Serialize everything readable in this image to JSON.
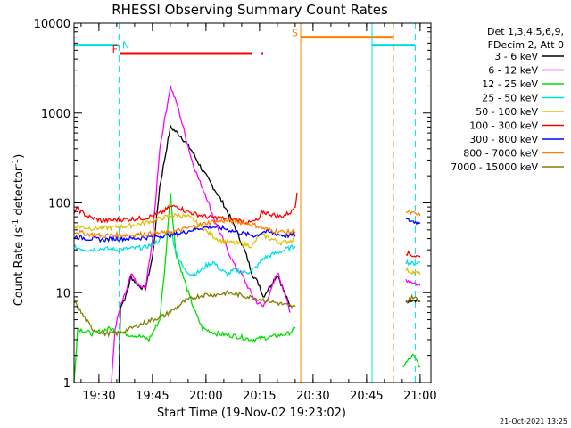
{
  "chart_data": {
    "type": "line",
    "title": "RHESSI Observing Summary Count Rates",
    "xlabel": "Start Time (19-Nov-02 19:23:02)",
    "ylabel": "Count Rate (s",
    "ylabel_sup1": "-1",
    "ylabel_mid": " detector",
    "ylabel_sup2": "-1",
    "ylabel_end": ")",
    "yscale": "log",
    "ylim": [
      1,
      10000
    ],
    "xlim_minutes": [
      0,
      100
    ],
    "x_unit": "minutes after 19:23:02",
    "y_ticks": [
      {
        "label": "1",
        "value": 1
      },
      {
        "label": "10",
        "value": 10
      },
      {
        "label": "100",
        "value": 100
      },
      {
        "label": "1000",
        "value": 1000
      },
      {
        "label": "10000",
        "value": 10000
      }
    ],
    "x_ticks": [
      {
        "label": "19:30",
        "minute": 6.97
      },
      {
        "label": "19:45",
        "minute": 21.97
      },
      {
        "label": "20:00",
        "minute": 36.97
      },
      {
        "label": "20:15",
        "minute": 51.97
      },
      {
        "label": "20:30",
        "minute": 66.97
      },
      {
        "label": "20:45",
        "minute": 81.97
      },
      {
        "label": "21:00",
        "minute": 96.97
      }
    ],
    "legend_header": [
      "Det 1,3,4,5,6,9,",
      "FDecim 2, Att 0"
    ],
    "legend_placement": "right",
    "footer": "21-Oct-2021 13:25",
    "series": [
      {
        "name": "3 - 6 keV",
        "color": "#000000",
        "segments": [
          [
            [
              12.6,
              1
            ],
            [
              13.0,
              7
            ],
            [
              14.5,
              9
            ],
            [
              16,
              15
            ],
            [
              18,
              12
            ],
            [
              20,
              11
            ],
            [
              22,
              25
            ],
            [
              24,
              150
            ],
            [
              27,
              700
            ],
            [
              30,
              550
            ],
            [
              33,
              380
            ],
            [
              36,
              230
            ],
            [
              39,
              150
            ],
            [
              42,
              95
            ],
            [
              45,
              55
            ],
            [
              48,
              28
            ],
            [
              50,
              16
            ],
            [
              52,
              12
            ],
            [
              53,
              9
            ],
            [
              55,
              12
            ],
            [
              57,
              16
            ],
            [
              59,
              10
            ],
            [
              60.5,
              7
            ]
          ],
          [
            [
              93,
              8
            ],
            [
              95,
              8.5
            ],
            [
              97,
              8
            ]
          ]
        ]
      },
      {
        "name": "6 - 12 keV",
        "color": "#ff00ff",
        "segments": [
          [
            [
              10.5,
              1
            ],
            [
              11.5,
              4
            ],
            [
              13,
              7
            ],
            [
              14.5,
              10
            ],
            [
              16,
              16
            ],
            [
              18,
              12
            ],
            [
              20,
              11
            ],
            [
              22,
              40
            ],
            [
              24,
              400
            ],
            [
              27,
              2000
            ],
            [
              29,
              1200
            ],
            [
              31,
              600
            ],
            [
              33,
              300
            ],
            [
              35,
              180
            ],
            [
              37,
              120
            ],
            [
              39,
              70
            ],
            [
              41,
              45
            ],
            [
              43,
              30
            ],
            [
              45,
              20
            ],
            [
              47,
              16
            ],
            [
              49,
              11
            ],
            [
              51,
              8
            ],
            [
              53,
              7
            ],
            [
              55,
              10
            ],
            [
              57,
              17
            ],
            [
              59,
              10
            ],
            [
              60.5,
              6
            ]
          ],
          [
            [
              93,
              14
            ],
            [
              95,
              13
            ],
            [
              97,
              12
            ]
          ]
        ]
      },
      {
        "name": "12 - 25 keV",
        "color": "#00e000",
        "segments": [
          [
            [
              0,
              1
            ],
            [
              1,
              4
            ],
            [
              5,
              3.5
            ],
            [
              10,
              4
            ],
            [
              14,
              3.5
            ],
            [
              18,
              3.3
            ],
            [
              21,
              3
            ],
            [
              24,
              5
            ],
            [
              25.5,
              20
            ],
            [
              27,
              130
            ],
            [
              28.5,
              28
            ],
            [
              30,
              18
            ],
            [
              32,
              10
            ],
            [
              34,
              6
            ],
            [
              36,
              4
            ],
            [
              40,
              3.5
            ],
            [
              45,
              3.3
            ],
            [
              50,
              3
            ],
            [
              55,
              3.2
            ],
            [
              60,
              3.5
            ],
            [
              62,
              4
            ]
          ],
          [
            [
              92,
              1.5
            ],
            [
              95,
              2
            ],
            [
              97,
              1.5
            ]
          ]
        ]
      },
      {
        "name": "25 - 50 keV",
        "color": "#00e0e0",
        "segments": [
          [
            [
              0,
              32
            ],
            [
              4,
              30
            ],
            [
              8,
              31
            ],
            [
              12,
              30
            ],
            [
              16,
              31
            ],
            [
              20,
              32
            ],
            [
              24,
              38
            ],
            [
              27,
              50
            ],
            [
              29,
              25
            ],
            [
              31,
              18
            ],
            [
              33,
              16
            ],
            [
              35,
              17
            ],
            [
              37,
              20
            ],
            [
              39,
              22
            ],
            [
              41,
              18
            ],
            [
              43,
              16
            ],
            [
              45,
              18
            ],
            [
              47,
              17
            ],
            [
              49,
              17
            ],
            [
              51,
              19
            ],
            [
              53,
              24
            ],
            [
              56,
              27
            ],
            [
              59,
              30
            ],
            [
              62,
              33
            ]
          ],
          [
            [
              93,
              22
            ],
            [
              95,
              21
            ],
            [
              97,
              22
            ]
          ]
        ]
      },
      {
        "name": "50 - 100 keV",
        "color": "#e0c000",
        "segments": [
          [
            [
              0,
              55
            ],
            [
              5,
              52
            ],
            [
              10,
              53
            ],
            [
              15,
              55
            ],
            [
              20,
              60
            ],
            [
              23,
              65
            ],
            [
              26,
              70
            ],
            [
              29,
              73
            ],
            [
              32,
              70
            ],
            [
              35,
              58
            ],
            [
              38,
              45
            ],
            [
              41,
              38
            ],
            [
              44,
              36
            ],
            [
              47,
              35
            ],
            [
              50,
              33
            ],
            [
              52,
              45
            ],
            [
              55,
              40
            ],
            [
              58,
              36
            ],
            [
              61,
              38
            ],
            [
              62,
              45
            ]
          ],
          [
            [
              93,
              18
            ],
            [
              95,
              17
            ],
            [
              97,
              16
            ]
          ]
        ]
      },
      {
        "name": "100 - 300 keV",
        "color": "#ff0000",
        "segments": [
          [
            [
              0,
              80
            ],
            [
              1,
              85
            ],
            [
              4,
              70
            ],
            [
              8,
              63
            ],
            [
              12,
              65
            ],
            [
              16,
              66
            ],
            [
              20,
              68
            ],
            [
              24,
              76
            ],
            [
              27,
              90
            ],
            [
              29,
              92
            ],
            [
              31,
              82
            ],
            [
              34,
              75
            ],
            [
              37,
              70
            ],
            [
              40,
              68
            ],
            [
              43,
              66
            ],
            [
              46,
              64
            ],
            [
              49,
              60
            ],
            [
              52,
              65
            ],
            [
              52.5,
              80
            ],
            [
              55,
              75
            ],
            [
              58,
              70
            ],
            [
              61,
              80
            ],
            [
              62,
              95
            ],
            [
              62.5,
              130
            ]
          ],
          [
            [
              93,
              28
            ],
            [
              95,
              26
            ],
            [
              97,
              25
            ]
          ]
        ]
      },
      {
        "name": "300 - 800 keV",
        "color": "#0000ff",
        "segments": [
          [
            [
              0,
              42
            ],
            [
              4,
              40
            ],
            [
              8,
              39
            ],
            [
              12,
              40
            ],
            [
              16,
              40
            ],
            [
              20,
              41
            ],
            [
              24,
              43
            ],
            [
              27,
              44
            ],
            [
              30,
              46
            ],
            [
              33,
              50
            ],
            [
              36,
              53
            ],
            [
              39,
              54
            ],
            [
              42,
              52
            ],
            [
              45,
              48
            ],
            [
              48,
              45
            ],
            [
              51,
              43
            ],
            [
              53,
              48
            ],
            [
              56,
              46
            ],
            [
              59,
              43
            ],
            [
              62,
              44
            ]
          ],
          [
            [
              93,
              65
            ],
            [
              95,
              62
            ],
            [
              97,
              60
            ]
          ]
        ]
      },
      {
        "name": "800 - 7000 keV",
        "color": "#ff8000",
        "segments": [
          [
            [
              0,
              48
            ],
            [
              4,
              45
            ],
            [
              8,
              43
            ],
            [
              12,
              44
            ],
            [
              16,
              44
            ],
            [
              20,
              45
            ],
            [
              24,
              46
            ],
            [
              27,
              47
            ],
            [
              30,
              50
            ],
            [
              33,
              54
            ],
            [
              36,
              58
            ],
            [
              39,
              62
            ],
            [
              42,
              63
            ],
            [
              45,
              62
            ],
            [
              48,
              60
            ],
            [
              51,
              56
            ],
            [
              53,
              52
            ],
            [
              56,
              49
            ],
            [
              59,
              47
            ],
            [
              62,
              48
            ]
          ],
          [
            [
              93,
              80
            ],
            [
              95,
              76
            ],
            [
              97,
              72
            ]
          ]
        ]
      },
      {
        "name": "7000 - 15000 keV",
        "color": "#808000",
        "segments": [
          [
            [
              0,
              8
            ],
            [
              2,
              6
            ],
            [
              5,
              4
            ],
            [
              8,
              3.5
            ],
            [
              12,
              3.5
            ],
            [
              16,
              4
            ],
            [
              19,
              4.5
            ],
            [
              22,
              5
            ],
            [
              25,
              5.5
            ],
            [
              28,
              6.5
            ],
            [
              31,
              8
            ],
            [
              34,
              9
            ],
            [
              37,
              9.5
            ],
            [
              40,
              9.5
            ],
            [
              43,
              10
            ],
            [
              46,
              9.5
            ],
            [
              49,
              9
            ],
            [
              52,
              8.5
            ],
            [
              55,
              8
            ],
            [
              58,
              7.5
            ],
            [
              61,
              7
            ],
            [
              62,
              7
            ]
          ],
          [
            [
              93,
              8
            ],
            [
              95,
              9
            ],
            [
              97,
              8
            ]
          ]
        ]
      }
    ],
    "annotations": [
      {
        "label": "N",
        "color": "#00e0e0",
        "start": 0,
        "end": 12.5,
        "level": 5700
      },
      {
        "label": "F",
        "color": "#ff0000",
        "start": 13.0,
        "end": 53.0,
        "level": 4600,
        "gap": [
          50.0,
          52.3
        ]
      },
      {
        "label": "S",
        "color": "#ff8000",
        "start": 63.5,
        "end": 89.5,
        "level": 7000
      },
      {
        "label": "",
        "color": "#00e0e0",
        "start": 83.5,
        "end": 95.5,
        "level": 5700
      }
    ],
    "vlines": [
      {
        "minute": 0.0,
        "color": "#00e0e0",
        "style": "solid"
      },
      {
        "minute": 12.6,
        "color": "#00e0e0",
        "style": "dashed"
      },
      {
        "minute": 63.5,
        "color": "#ff8000",
        "style": "solid"
      },
      {
        "minute": 83.5,
        "color": "#00e0e0",
        "style": "solid"
      },
      {
        "minute": 89.5,
        "color": "#ff8000",
        "style": "dashed"
      },
      {
        "minute": 95.6,
        "color": "#00e0e0",
        "style": "dashed"
      }
    ]
  }
}
